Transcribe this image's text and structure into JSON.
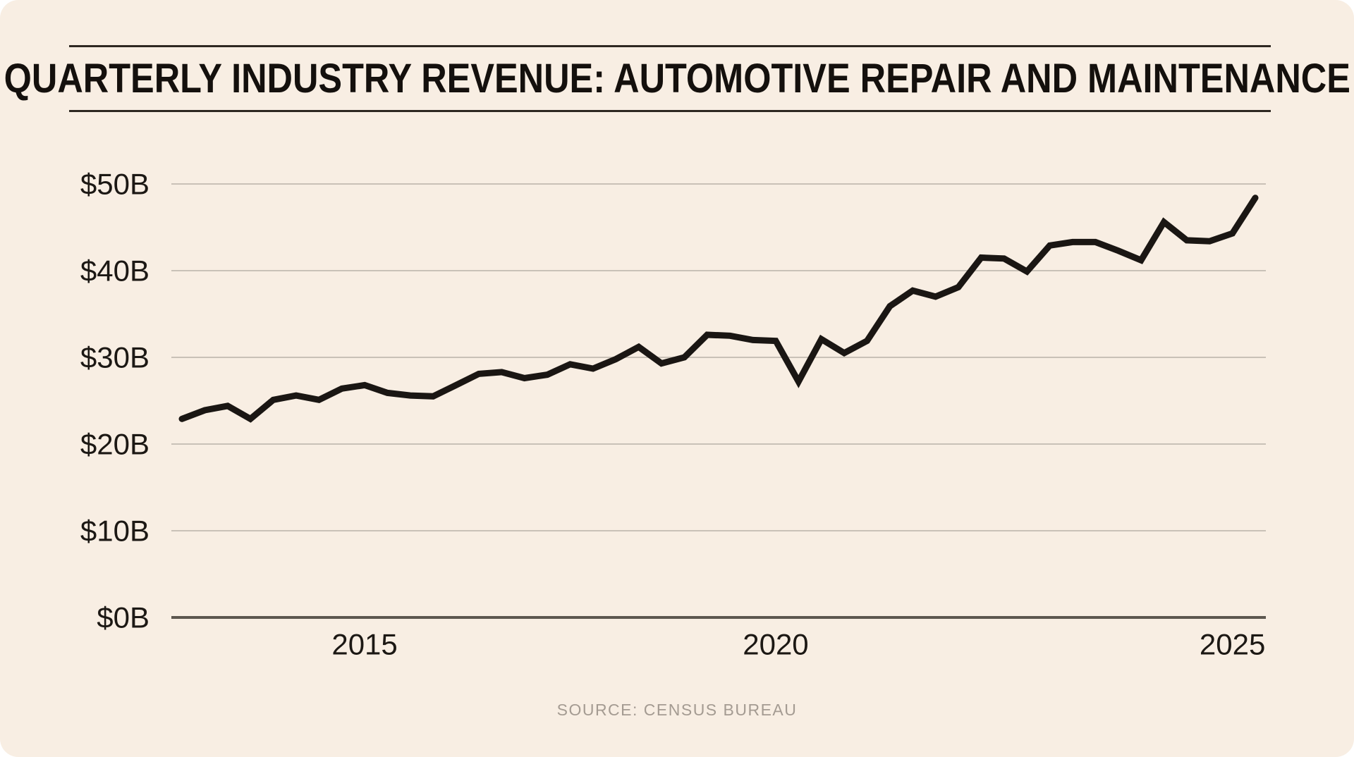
{
  "page": {
    "outside_background": "#ffffff",
    "card_background": "#f8eee3"
  },
  "header": {
    "title": "QUARTERLY INDUSTRY REVENUE: AUTOMOTIVE REPAIR AND MAINTENANCE"
  },
  "footer": {
    "source_note": "SOURCE: CENSUS BUREAU"
  },
  "chart_data": {
    "type": "line",
    "title": "QUARTERLY INDUSTRY REVENUE: AUTOMOTIVE REPAIR AND MAINTENANCE",
    "unit": "billions of US dollars per quarter",
    "x": [
      "2013 Q3",
      "2013 Q4",
      "2014 Q1",
      "2014 Q2",
      "2014 Q3",
      "2014 Q4",
      "2015 Q1",
      "2015 Q2",
      "2015 Q3",
      "2015 Q4",
      "2016 Q1",
      "2016 Q2",
      "2016 Q3",
      "2016 Q4",
      "2017 Q1",
      "2017 Q2",
      "2017 Q3",
      "2017 Q4",
      "2018 Q1",
      "2018 Q2",
      "2018 Q3",
      "2018 Q4",
      "2019 Q1",
      "2019 Q2",
      "2019 Q3",
      "2019 Q4",
      "2020 Q1",
      "2020 Q2",
      "2020 Q3",
      "2020 Q4",
      "2021 Q1",
      "2021 Q2",
      "2021 Q3",
      "2021 Q4",
      "2022 Q1",
      "2022 Q2",
      "2022 Q3",
      "2022 Q4",
      "2023 Q1",
      "2023 Q2",
      "2023 Q3",
      "2023 Q4",
      "2024 Q1",
      "2024 Q2",
      "2024 Q3",
      "2024 Q4",
      "2025 Q1",
      "2025 Q2"
    ],
    "values": [
      22.9,
      23.9,
      24.4,
      22.9,
      25.1,
      25.6,
      25.1,
      26.4,
      26.8,
      25.9,
      25.6,
      25.5,
      26.8,
      28.1,
      28.3,
      27.6,
      28.0,
      29.2,
      28.7,
      29.8,
      31.2,
      29.3,
      30.0,
      32.6,
      32.5,
      32.0,
      31.9,
      27.2,
      32.1,
      30.5,
      31.9,
      35.9,
      37.7,
      37.0,
      38.1,
      41.5,
      41.4,
      39.9,
      42.9,
      43.3,
      43.3,
      42.3,
      41.2,
      45.6,
      43.5,
      43.4,
      44.3,
      48.4
    ],
    "ylim": [
      0,
      50
    ],
    "y_ticks": [
      {
        "value": 0,
        "label": "$0B"
      },
      {
        "value": 10,
        "label": "$10B"
      },
      {
        "value": 20,
        "label": "$20B"
      },
      {
        "value": 30,
        "label": "$30B"
      },
      {
        "value": 40,
        "label": "$40B"
      },
      {
        "value": 50,
        "label": "$50B"
      }
    ],
    "x_ticks": [
      {
        "label": "2015",
        "index": 8
      },
      {
        "label": "2020",
        "index": 26
      },
      {
        "label": "2025",
        "index": 46
      }
    ],
    "grid": "horizontal",
    "legend": "none",
    "colors": {
      "line": "#1a1613",
      "gridline": "#c9c1b7",
      "baseline_axis": "#5d574f",
      "tick_label": "#1c1814"
    }
  }
}
